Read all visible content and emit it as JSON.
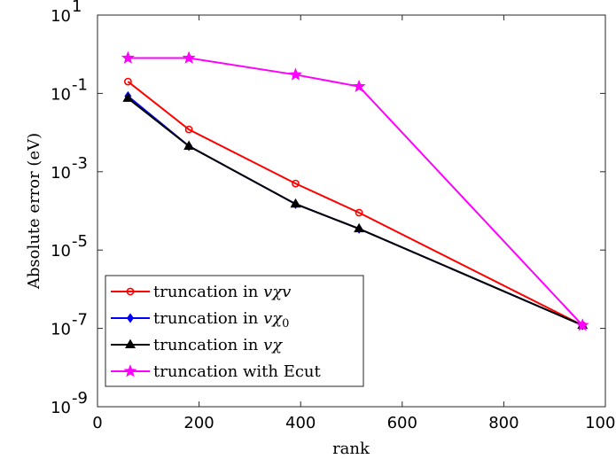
{
  "chart_data": {
    "type": "line",
    "title": "",
    "xlabel": "rank",
    "ylabel": "Absolute error (eV)",
    "xlim": [
      0,
      1000
    ],
    "ylim": [
      1e-09,
      10
    ],
    "yscale": "log",
    "grid": false,
    "legend_location": "lower-left",
    "x_ticks": [
      0,
      200,
      400,
      600,
      800,
      1000
    ],
    "x_tick_labels": [
      "0",
      "200",
      "400",
      "600",
      "800",
      "1000"
    ],
    "y_ticks": [
      {
        "base": "10",
        "exp": "-9",
        "value": 1e-09
      },
      {
        "base": "10",
        "exp": "-7",
        "value": 1e-07
      },
      {
        "base": "10",
        "exp": "-5",
        "value": 1e-05
      },
      {
        "base": "10",
        "exp": "-3",
        "value": 0.001
      },
      {
        "base": "10",
        "exp": "-1",
        "value": 0.1
      },
      {
        "base": "10",
        "exp": "1",
        "value": 10
      }
    ],
    "series": [
      {
        "name": "truncation in vχv",
        "legend_parts": [
          {
            "t": "truncation in ",
            "i": false
          },
          {
            "t": "vχv",
            "i": true
          }
        ],
        "color": "#ff0000",
        "marker": "circle",
        "x": [
          60,
          180,
          390,
          515,
          955
        ],
        "y": [
          0.2,
          0.012,
          0.0005,
          9e-05,
          1.2e-07
        ]
      },
      {
        "name": "truncation in vχ0",
        "legend_parts": [
          {
            "t": "truncation in ",
            "i": false
          },
          {
            "t": "vχ",
            "i": true
          },
          {
            "t": "0",
            "i": false,
            "sub": true
          }
        ],
        "color": "#0000ff",
        "marker": "diamond",
        "x": [
          60,
          180,
          390,
          515,
          955
        ],
        "y": [
          0.085,
          0.0045,
          0.00015,
          3.5e-05,
          1.2e-07
        ]
      },
      {
        "name": "truncation in vχ",
        "legend_parts": [
          {
            "t": "truncation in ",
            "i": false
          },
          {
            "t": "vχ",
            "i": true
          }
        ],
        "color": "#000000",
        "marker": "triangle",
        "x": [
          60,
          180,
          390,
          515,
          955
        ],
        "y": [
          0.075,
          0.0045,
          0.00015,
          3.5e-05,
          1.2e-07
        ]
      },
      {
        "name": "truncation with Ecut",
        "legend_parts": [
          {
            "t": "truncation with Ecut",
            "i": false
          }
        ],
        "color": "#ff00ff",
        "marker": "star",
        "x": [
          60,
          180,
          390,
          515,
          955
        ],
        "y": [
          0.8,
          0.8,
          0.3,
          0.15,
          1.2e-07
        ]
      }
    ]
  }
}
